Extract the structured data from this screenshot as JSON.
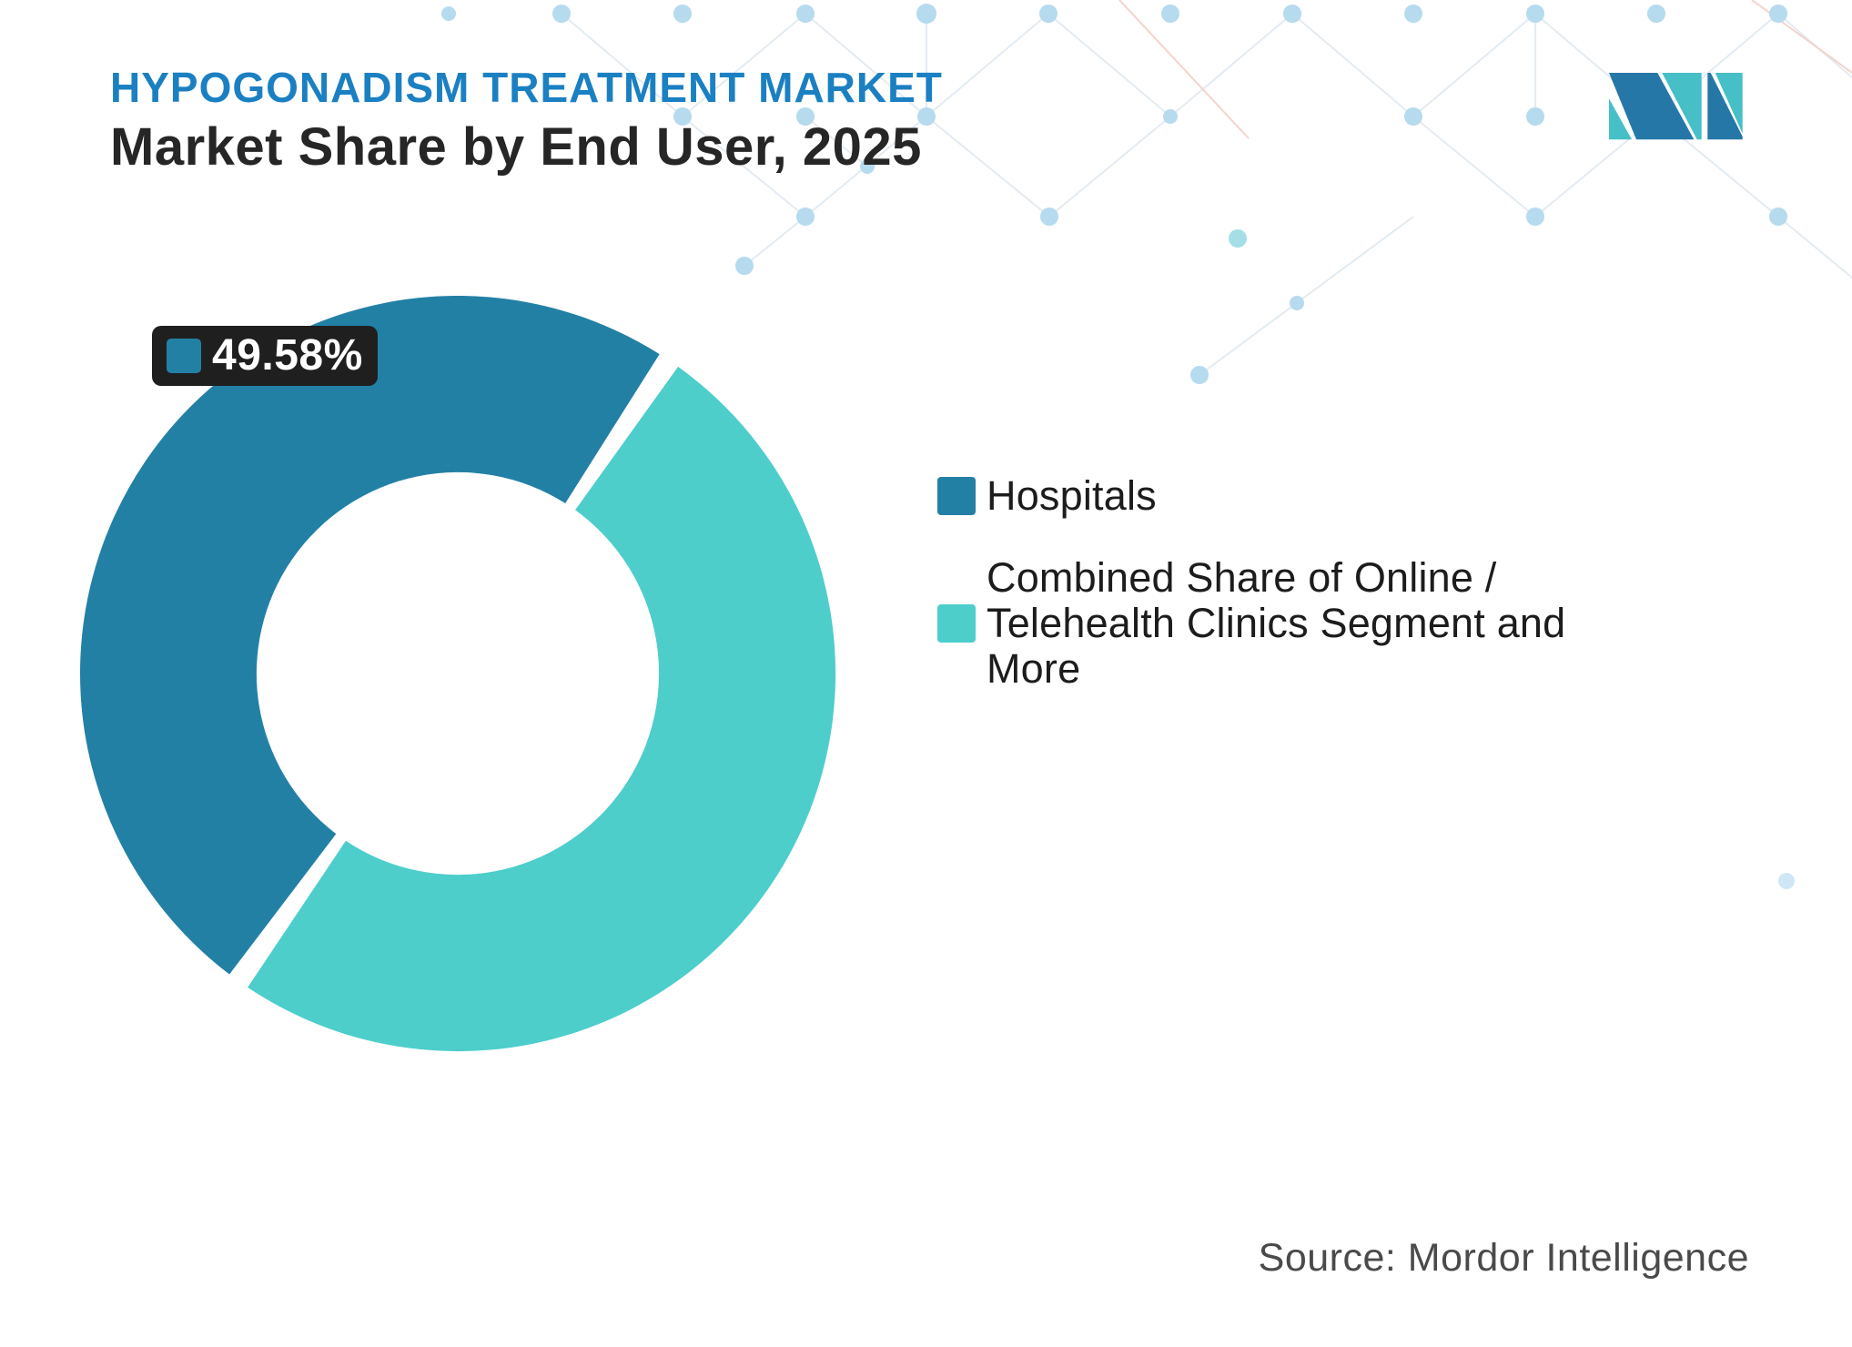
{
  "header": {
    "eyebrow": "HYPOGONADISM TREATMENT MARKET",
    "title": "Market Share by End User, 2025"
  },
  "legend": [
    {
      "label": "Hospitals",
      "color": "#2380A5"
    },
    {
      "label": "Combined Share of Online / Telehealth Clinics Segment and More",
      "color": "#4DCECB"
    }
  ],
  "source": "Source: Mordor Intelligence",
  "colors": {
    "accent_blue": "#2380A5",
    "accent_teal": "#4DCECB",
    "title_blue": "#1B80C2",
    "tooltip_bg": "#1F1F1F",
    "logo_dark": "#2577A8",
    "logo_teal": "#46BFC6"
  },
  "chart_data": {
    "type": "pie",
    "subtype": "donut",
    "title": "Market Share by End User, 2025",
    "units": "%",
    "slices": [
      {
        "label": "Hospitals",
        "value": 49.58,
        "data_label": "49.58%",
        "color": "#2380A5"
      },
      {
        "label": "Combined Share of Online / Telehealth Clinics Segment and More",
        "value": 50.42,
        "data_label": "",
        "color": "#4DCECB"
      }
    ],
    "start_angle_deg": 125.5,
    "pad_angle_deg": 3.4,
    "outer_radius_px": 415,
    "inner_radius_ratio": 0.533,
    "legend_position": "right"
  }
}
